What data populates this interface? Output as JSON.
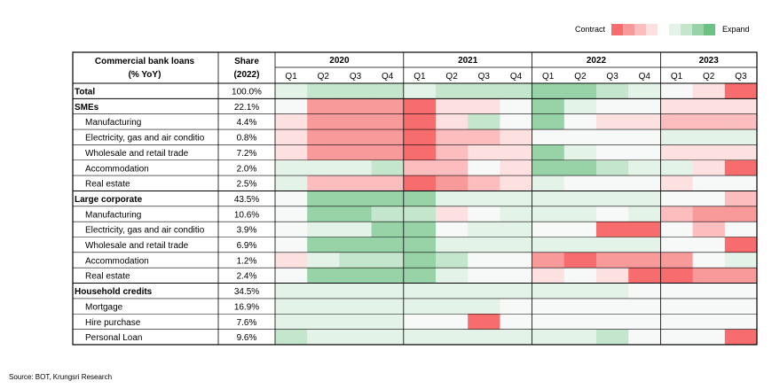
{
  "legend": {
    "contract_label": "Contract",
    "expand_label": "Expand",
    "contract_colors": [
      "#f76d6d",
      "#f99a9a",
      "#fbbdbd",
      "#fde0e0"
    ],
    "expand_colors": [
      "#e4f3e8",
      "#c4e6cc",
      "#97d3a6",
      "#6cc184"
    ]
  },
  "source": "Source: BOT, Krungsri Research",
  "chart_data": {
    "type": "heatmap",
    "title": "",
    "row_header": [
      "Commercial bank loans",
      "(% YoY)"
    ],
    "share_header": [
      "Share",
      "(2022)"
    ],
    "years": [
      {
        "label": "2020",
        "quarters": [
          "Q1",
          "Q2",
          "Q3",
          "Q4"
        ]
      },
      {
        "label": "2021",
        "quarters": [
          "Q1",
          "Q2",
          "Q3",
          "Q4"
        ]
      },
      {
        "label": "2022",
        "quarters": [
          "Q1",
          "Q2",
          "Q3",
          "Q4"
        ]
      },
      {
        "label": "2023",
        "quarters": [
          "Q1",
          "Q2",
          "Q3"
        ]
      }
    ],
    "value_scale": "-4 = strongest contraction … 0 = neutral … +4 = strongest expansion (colour intensity)",
    "rows": [
      {
        "label": "Total",
        "level": 0,
        "share": "100.0%",
        "values": [
          1,
          2,
          2,
          2,
          1,
          2,
          2,
          2,
          3,
          3,
          2,
          1,
          0,
          -1,
          -4
        ]
      },
      {
        "label": "SMEs",
        "level": 0,
        "share": "22.1%",
        "values": [
          0,
          -3,
          -3,
          -3,
          -4,
          -1,
          -1,
          0,
          3,
          1,
          0,
          0,
          -1,
          -1,
          -1
        ]
      },
      {
        "label": "Manufacturing",
        "level": 1,
        "share": "4.4%",
        "values": [
          -1,
          -3,
          -3,
          -3,
          -4,
          -1,
          2,
          0,
          3,
          0,
          -1,
          -1,
          -2,
          -2,
          -2
        ]
      },
      {
        "label": "Electricity, gas and air conditio",
        "level": 1,
        "share": "0.8%",
        "values": [
          -1,
          -3,
          -3,
          -3,
          -4,
          -2,
          -2,
          -1,
          0,
          0,
          0,
          0,
          1,
          1,
          1
        ]
      },
      {
        "label": "Wholesale and retail trade",
        "level": 1,
        "share": "7.2%",
        "values": [
          -1,
          -3,
          -3,
          -3,
          -4,
          -2,
          -1,
          -1,
          3,
          1,
          0,
          0,
          -1,
          -1,
          -1
        ]
      },
      {
        "label": "Accommodation",
        "level": 1,
        "share": "2.0%",
        "values": [
          1,
          1,
          1,
          2,
          -2,
          -2,
          0,
          -1,
          3,
          3,
          2,
          1,
          1,
          -1,
          -4
        ]
      },
      {
        "label": "Real estate",
        "level": 1,
        "share": "2.5%",
        "values": [
          1,
          -2,
          -2,
          -2,
          -4,
          -3,
          -2,
          -1,
          1,
          0,
          0,
          0,
          -1,
          0,
          0
        ]
      },
      {
        "label": "Large corporate",
        "level": 0,
        "share": "43.5%",
        "values": [
          0,
          3,
          3,
          3,
          3,
          1,
          1,
          1,
          1,
          1,
          1,
          1,
          0,
          0,
          -2
        ]
      },
      {
        "label": "Manufacturing",
        "level": 1,
        "share": "10.6%",
        "values": [
          0,
          3,
          3,
          2,
          2,
          -1,
          0,
          1,
          1,
          1,
          0,
          1,
          -2,
          -3,
          -3
        ]
      },
      {
        "label": "Electricity, gas and air conditio",
        "level": 1,
        "share": "3.9%",
        "values": [
          0,
          1,
          1,
          3,
          3,
          0,
          1,
          1,
          0,
          0,
          -4,
          -4,
          0,
          -2,
          0
        ]
      },
      {
        "label": "Wholesale and retail trade",
        "level": 1,
        "share": "6.9%",
        "values": [
          0,
          3,
          3,
          3,
          3,
          1,
          1,
          1,
          1,
          1,
          1,
          1,
          0,
          0,
          -4
        ]
      },
      {
        "label": "Accommodation",
        "level": 1,
        "share": "1.2%",
        "values": [
          -1,
          1,
          2,
          2,
          3,
          2,
          0,
          0,
          -3,
          -4,
          -3,
          -3,
          -3,
          0,
          1
        ]
      },
      {
        "label": "Real estate",
        "level": 1,
        "share": "2.4%",
        "values": [
          0,
          3,
          3,
          3,
          3,
          1,
          0,
          0,
          -1,
          0,
          -1,
          -4,
          -4,
          -3,
          -3
        ]
      },
      {
        "label": "Household credits",
        "level": 0,
        "share": "34.5%",
        "values": [
          1,
          1,
          1,
          1,
          1,
          1,
          1,
          1,
          1,
          1,
          1,
          0,
          0,
          0,
          0
        ]
      },
      {
        "label": "Mortgage",
        "level": 1,
        "share": "16.9%",
        "values": [
          1,
          1,
          1,
          1,
          1,
          1,
          1,
          0,
          0,
          0,
          0,
          0,
          0,
          0,
          0
        ]
      },
      {
        "label": "Hire purchase",
        "level": 1,
        "share": "7.6%",
        "values": [
          1,
          1,
          1,
          1,
          0,
          0,
          -4,
          0,
          0,
          0,
          0,
          0,
          0,
          0,
          0
        ]
      },
      {
        "label": "Personal Loan",
        "level": 1,
        "share": "9.6%",
        "values": [
          2,
          1,
          1,
          1,
          1,
          1,
          1,
          1,
          1,
          1,
          2,
          0,
          0,
          0,
          -4
        ]
      }
    ]
  }
}
